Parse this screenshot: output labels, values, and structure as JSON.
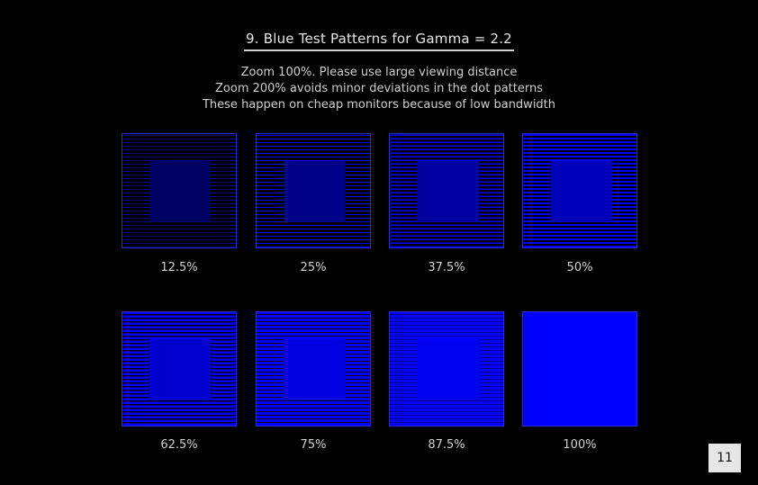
{
  "title": "9. Blue Test Patterns for Gamma = 2.2",
  "subtitle_lines": [
    "Zoom 100%. Please use large viewing distance",
    "Zoom 200% avoids minor deviations in the dot patterns",
    "These happen on cheap monitors because of low bandwidth"
  ],
  "patterns": [
    {
      "label": "12.5%",
      "fraction": 0.125
    },
    {
      "label": "25%",
      "fraction": 0.25
    },
    {
      "label": "37.5%",
      "fraction": 0.375
    },
    {
      "label": "50%",
      "fraction": 0.5
    },
    {
      "label": "62.5%",
      "fraction": 0.625
    },
    {
      "label": "75%",
      "fraction": 0.75
    },
    {
      "label": "87.5%",
      "fraction": 0.875
    },
    {
      "label": "100%",
      "fraction": 1.0
    }
  ],
  "colors": {
    "background": "#000000",
    "pattern_blue": "#0000ff",
    "border": "#2a2ad0"
  },
  "page_number": "11"
}
